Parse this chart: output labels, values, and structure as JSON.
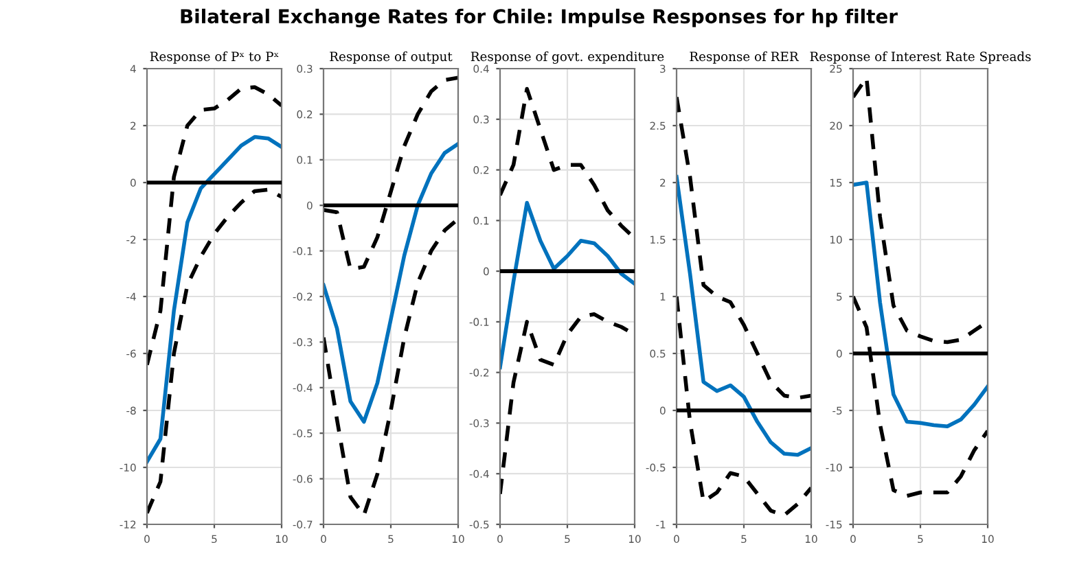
{
  "chart_data": [
    {
      "type": "line",
      "title": "Response of Pˣ to Pˣ",
      "annotations": [
        "Bilateral Exchange Rates for Chile: Impulse Responses for hp filter"
      ],
      "x": [
        0,
        1,
        2,
        3,
        4,
        5,
        6,
        7,
        8,
        9,
        10
      ],
      "xlim": [
        0,
        10
      ],
      "xticks": [
        0,
        5,
        10
      ],
      "ylim": [
        -12,
        4
      ],
      "yticks": [
        -12,
        -10,
        -8,
        -6,
        -4,
        -2,
        0,
        2,
        4
      ],
      "grid": true,
      "legend": false,
      "ref_lines": [
        {
          "axis": "y",
          "value": 0,
          "color": "#000000",
          "line_style": "solid"
        }
      ],
      "series": [
        {
          "color": "#000000",
          "line_style": "dashed",
          "values": [
            -6.4,
            -4.5,
            0.2,
            2.0,
            2.55,
            2.6,
            2.9,
            3.3,
            3.35,
            3.1,
            2.7
          ]
        },
        {
          "color": "#000000",
          "line_style": "dashed",
          "values": [
            -11.6,
            -10.5,
            -6.0,
            -3.6,
            -2.6,
            -1.8,
            -1.2,
            -0.7,
            -0.3,
            -0.25,
            -0.5
          ]
        },
        {
          "color": "#0072bd",
          "line_style": "solid",
          "values": [
            -9.8,
            -9.0,
            -4.5,
            -1.4,
            -0.2,
            0.3,
            0.8,
            1.3,
            1.6,
            1.55,
            1.25
          ]
        }
      ]
    },
    {
      "type": "line",
      "title": "Response of output",
      "x": [
        0,
        1,
        2,
        3,
        4,
        5,
        6,
        7,
        8,
        9,
        10
      ],
      "xlim": [
        0,
        10
      ],
      "xticks": [
        0,
        5,
        10
      ],
      "ylim": [
        -0.7,
        0.3
      ],
      "yticks": [
        -0.7,
        -0.6,
        -0.5,
        -0.4,
        -0.3,
        -0.2,
        -0.1,
        0,
        0.1,
        0.2,
        0.3
      ],
      "grid": true,
      "legend": false,
      "ref_lines": [
        {
          "axis": "y",
          "value": 0,
          "color": "#000000",
          "line_style": "solid"
        }
      ],
      "series": [
        {
          "color": "#000000",
          "line_style": "dashed",
          "values": [
            -0.01,
            -0.015,
            -0.14,
            -0.135,
            -0.07,
            0.03,
            0.13,
            0.2,
            0.25,
            0.275,
            0.28
          ]
        },
        {
          "color": "#000000",
          "line_style": "dashed",
          "values": [
            -0.29,
            -0.47,
            -0.64,
            -0.68,
            -0.59,
            -0.45,
            -0.29,
            -0.17,
            -0.1,
            -0.055,
            -0.03
          ]
        },
        {
          "color": "#0072bd",
          "line_style": "solid",
          "values": [
            -0.175,
            -0.27,
            -0.43,
            -0.475,
            -0.39,
            -0.25,
            -0.11,
            0.0,
            0.07,
            0.115,
            0.135
          ]
        }
      ]
    },
    {
      "type": "line",
      "title": "Response of govt. expenditure",
      "x": [
        0,
        1,
        2,
        3,
        4,
        5,
        6,
        7,
        8,
        9,
        10
      ],
      "xlim": [
        0,
        10
      ],
      "xticks": [
        0,
        5,
        10
      ],
      "ylim": [
        -0.5,
        0.4
      ],
      "yticks": [
        -0.5,
        -0.4,
        -0.3,
        -0.2,
        -0.1,
        0,
        0.1,
        0.2,
        0.3,
        0.4
      ],
      "grid": true,
      "legend": false,
      "ref_lines": [
        {
          "axis": "y",
          "value": 0,
          "color": "#000000",
          "line_style": "solid"
        }
      ],
      "series": [
        {
          "color": "#000000",
          "line_style": "dashed",
          "values": [
            0.15,
            0.21,
            0.36,
            0.28,
            0.2,
            0.21,
            0.21,
            0.17,
            0.12,
            0.09,
            0.065
          ]
        },
        {
          "color": "#000000",
          "line_style": "dashed",
          "values": [
            -0.44,
            -0.22,
            -0.1,
            -0.175,
            -0.185,
            -0.125,
            -0.09,
            -0.085,
            -0.1,
            -0.11,
            -0.125
          ]
        },
        {
          "color": "#0072bd",
          "line_style": "solid",
          "values": [
            -0.19,
            -0.02,
            0.135,
            0.06,
            0.005,
            0.03,
            0.06,
            0.055,
            0.03,
            -0.005,
            -0.025
          ]
        }
      ]
    },
    {
      "type": "line",
      "title": "Response of RER",
      "x": [
        0,
        1,
        2,
        3,
        4,
        5,
        6,
        7,
        8,
        9,
        10
      ],
      "xlim": [
        0,
        10
      ],
      "xticks": [
        0,
        5,
        10
      ],
      "ylim": [
        -1,
        3
      ],
      "yticks": [
        -1,
        -0.5,
        0,
        0.5,
        1,
        1.5,
        2,
        2.5,
        3
      ],
      "grid": true,
      "legend": false,
      "ref_lines": [
        {
          "axis": "y",
          "value": 0,
          "color": "#000000",
          "line_style": "solid"
        }
      ],
      "series": [
        {
          "color": "#000000",
          "line_style": "dashed",
          "values": [
            2.75,
            2.05,
            1.1,
            1.0,
            0.95,
            0.75,
            0.5,
            0.25,
            0.13,
            0.11,
            0.13
          ]
        },
        {
          "color": "#000000",
          "line_style": "dashed",
          "values": [
            1.0,
            -0.1,
            -0.8,
            -0.72,
            -0.55,
            -0.58,
            -0.73,
            -0.88,
            -0.92,
            -0.82,
            -0.68
          ]
        },
        {
          "color": "#0072bd",
          "line_style": "solid",
          "values": [
            2.05,
            1.2,
            0.25,
            0.17,
            0.22,
            0.12,
            -0.1,
            -0.28,
            -0.38,
            -0.39,
            -0.33
          ]
        }
      ]
    },
    {
      "type": "line",
      "title": "Response of Interest Rate Spreads",
      "x": [
        0,
        1,
        2,
        3,
        4,
        5,
        6,
        7,
        8,
        9,
        10
      ],
      "xlim": [
        0,
        10
      ],
      "xticks": [
        0,
        5,
        10
      ],
      "ylim": [
        -15,
        25
      ],
      "yticks": [
        -15,
        -10,
        -5,
        0,
        5,
        10,
        15,
        20,
        25
      ],
      "grid": true,
      "legend": false,
      "ref_lines": [
        {
          "axis": "y",
          "value": 0,
          "color": "#000000",
          "line_style": "solid"
        }
      ],
      "series": [
        {
          "color": "#000000",
          "line_style": "dashed",
          "values": [
            22.5,
            24.2,
            12.0,
            4.2,
            2.0,
            1.5,
            1.1,
            1.0,
            1.2,
            2.0,
            2.8
          ]
        },
        {
          "color": "#000000",
          "line_style": "dashed",
          "values": [
            5.0,
            2.3,
            -6.2,
            -12.0,
            -12.5,
            -12.2,
            -12.2,
            -12.2,
            -10.8,
            -8.5,
            -6.8
          ]
        },
        {
          "color": "#0072bd",
          "line_style": "solid",
          "values": [
            14.8,
            15.0,
            4.5,
            -3.6,
            -6.0,
            -6.1,
            -6.3,
            -6.4,
            -5.8,
            -4.5,
            -2.9
          ]
        }
      ]
    }
  ]
}
